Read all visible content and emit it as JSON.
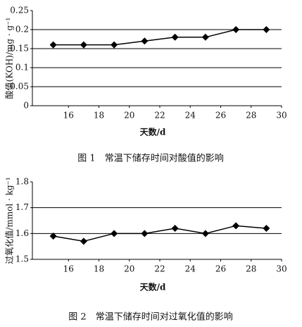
{
  "chart_data": [
    {
      "type": "line",
      "title": "图 1　常温下储存时间对酸值的影响",
      "x_label": "天数/d",
      "y_label": "酸值(KOH)/mg · g⁻¹",
      "x": [
        15,
        17,
        19,
        21,
        23,
        25,
        27,
        29
      ],
      "series": [
        {
          "color": "#000000",
          "values": [
            0.16,
            0.16,
            0.16,
            0.17,
            0.18,
            0.18,
            0.2,
            0.2
          ]
        }
      ],
      "xlim": [
        14,
        30
      ],
      "xticks": [
        16,
        18,
        20,
        22,
        24,
        26,
        28,
        30
      ],
      "ylim": [
        0,
        0.25
      ],
      "yticks": [
        0,
        0.05,
        0.1,
        0.15,
        0.2,
        0.25
      ],
      "grid": true
    },
    {
      "type": "line",
      "title": "图 2　常温下储存时间对过氧化值的影响",
      "x_label": "天数/d",
      "y_label": "过氧化值/mmol · kg⁻¹",
      "x": [
        15,
        17,
        19,
        21,
        23,
        25,
        27,
        29
      ],
      "series": [
        {
          "color": "#000000",
          "values": [
            1.59,
            1.57,
            1.6,
            1.6,
            1.62,
            1.6,
            1.63,
            1.62
          ]
        }
      ],
      "xlim": [
        14,
        30
      ],
      "xticks": [
        16,
        18,
        20,
        22,
        24,
        26,
        28,
        30
      ],
      "ylim": [
        1.5,
        1.8
      ],
      "yticks": [
        1.5,
        1.6,
        1.7,
        1.8
      ],
      "grid": true
    }
  ]
}
